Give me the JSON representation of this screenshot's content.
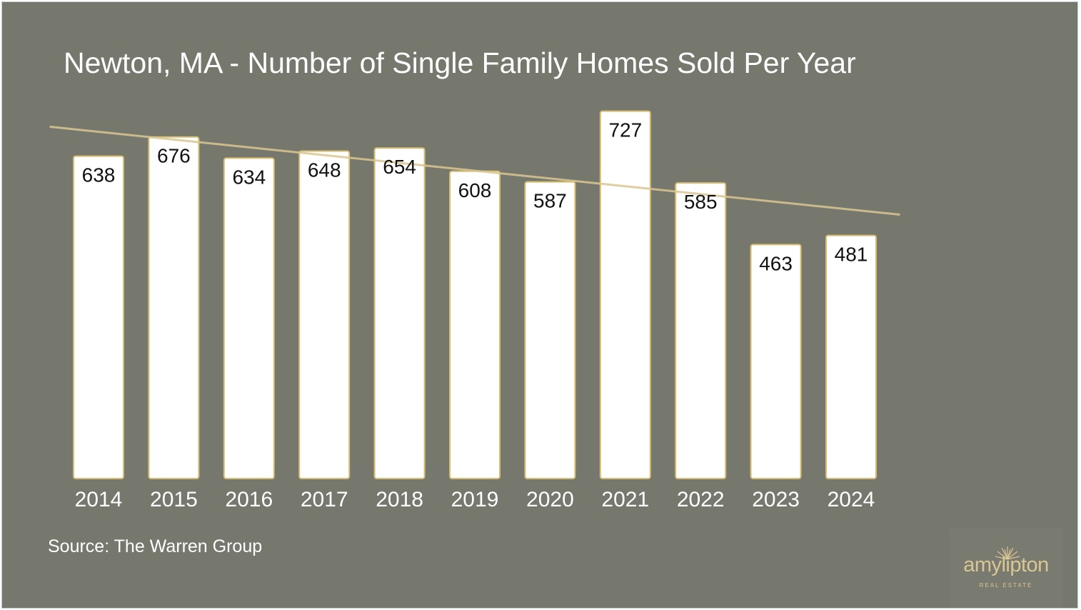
{
  "chart_data": {
    "type": "bar",
    "title": "Newton, MA - Number of Single Family Homes Sold Per Year",
    "categories": [
      "2014",
      "2015",
      "2016",
      "2017",
      "2018",
      "2019",
      "2020",
      "2021",
      "2022",
      "2023",
      "2024"
    ],
    "values": [
      638,
      676,
      634,
      648,
      654,
      608,
      587,
      727,
      585,
      463,
      481
    ],
    "data_labels": [
      "638",
      "676",
      "634",
      "648",
      "654",
      "608",
      "587",
      "727",
      "585",
      "463",
      "481"
    ],
    "xlabel": "",
    "ylabel": "",
    "grid": false,
    "legend": "none",
    "trendline": "linear",
    "bar_color": "#ffffff",
    "bar_border_color": "#d6bd72",
    "trendline_color": "#d9c692",
    "background_color": "#76776d"
  },
  "source": "Source: The Warren Group",
  "logo": {
    "wordmark": "amylipton",
    "subtitle": "REAL ESTATE",
    "icon": "sunburst-icon",
    "color": "#d9c692"
  }
}
